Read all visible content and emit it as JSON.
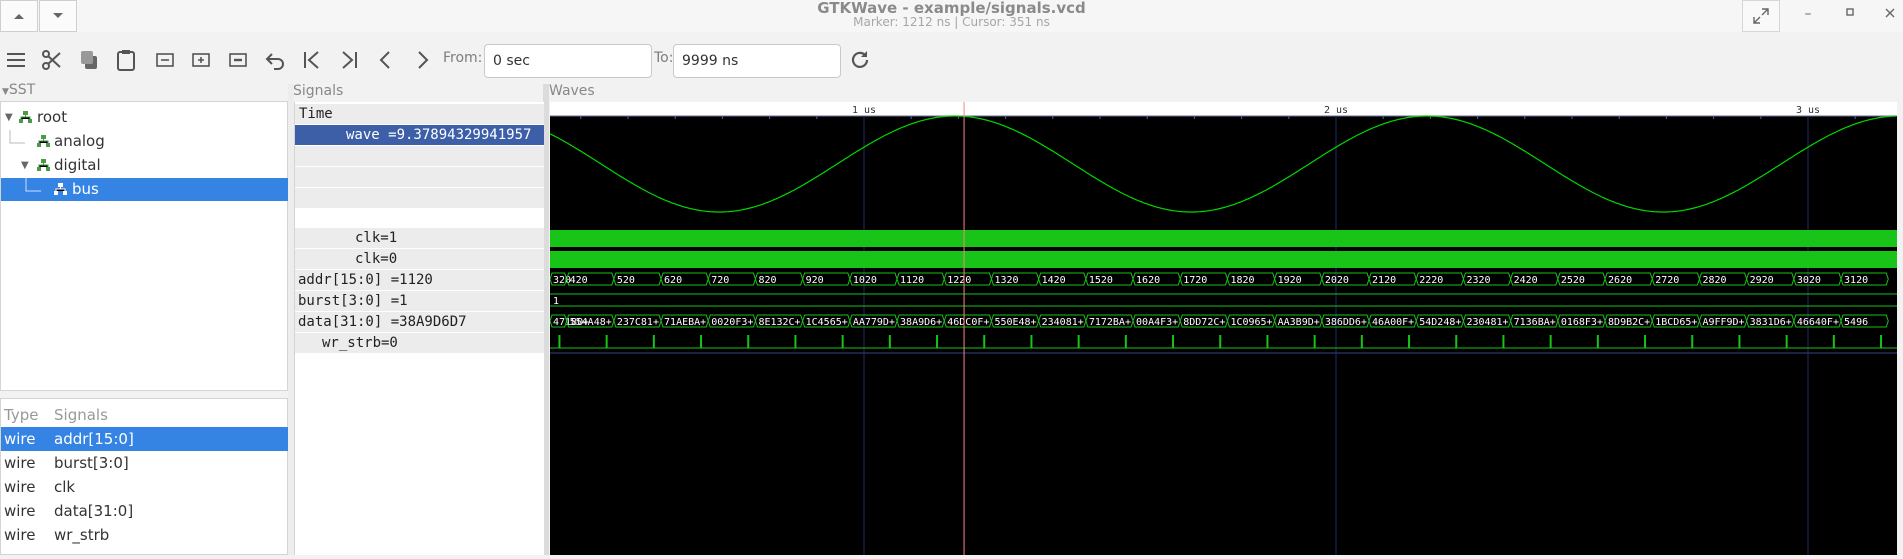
{
  "window": {
    "title": "GTKWave - example/signals.vcd",
    "subtitle": "Marker: 1212 ns  |  Cursor: 351 ns"
  },
  "toolbar": {
    "from_label": "From:",
    "from_value": "0 sec",
    "to_label": "To:",
    "to_value": "9999 ns"
  },
  "sst": {
    "title": "SST",
    "tree": [
      {
        "label": "root",
        "level": 0,
        "expanded": true
      },
      {
        "label": "analog",
        "level": 1
      },
      {
        "label": "digital",
        "level": 1,
        "expanded": true
      },
      {
        "label": "bus",
        "level": 2,
        "selected": true
      }
    ],
    "type_header": "Type",
    "signals_header": "Signals",
    "signals": [
      {
        "type": "wire",
        "name": "addr[15:0]",
        "selected": true
      },
      {
        "type": "wire",
        "name": "burst[3:0]"
      },
      {
        "type": "wire",
        "name": "clk"
      },
      {
        "type": "wire",
        "name": "data[31:0]"
      },
      {
        "type": "wire",
        "name": "wr_strb"
      }
    ]
  },
  "signals_pane": {
    "title": "Signals",
    "time_row": "Time",
    "rows": [
      {
        "text": "wave =9.37894329941957",
        "selected": true
      },
      {
        "text": ""
      },
      {
        "text": ""
      },
      {
        "text": ""
      },
      {
        "text": "clk=1"
      },
      {
        "text": "clk=0"
      },
      {
        "text": "addr[15:0] =1120"
      },
      {
        "text": "burst[3:0] =1"
      },
      {
        "text": "data[31:0] =38A9D6D7"
      },
      {
        "text": "wr_strb=0"
      }
    ]
  },
  "waves_pane": {
    "title": "Waves",
    "time_labels": [
      "1 us",
      "2 us",
      "3 us"
    ],
    "marker_time_ns": 1212,
    "addr_values": [
      "320",
      "420",
      "520",
      "620",
      "720",
      "820",
      "920",
      "1020",
      "1120",
      "1220",
      "1320",
      "1420",
      "1520",
      "1620",
      "1720",
      "1820",
      "1920",
      "2020",
      "2120",
      "2220",
      "2320",
      "2420",
      "2520",
      "2620",
      "2720",
      "2820",
      "2920",
      "3020",
      "3120"
    ],
    "burst_value": "1",
    "data_values": [
      "47180+",
      "554A48+",
      "237C81+",
      "71AEBA+",
      "0020F3+",
      "8E132C+",
      "1C4565+",
      "AA779D+",
      "38A9D6+",
      "46DC0F+",
      "550E48+",
      "234081+",
      "7172BA+",
      "00A4F3+",
      "8DD72C+",
      "1C0965+",
      "AA3B9D+",
      "386DD6+",
      "46A00F+",
      "54D248+",
      "230481+",
      "7136BA+",
      "0168F3+",
      "8D9B2C+",
      "1BCD65+",
      "A9FF9D+",
      "3831D6+",
      "46640F+",
      "5496"
    ],
    "colors": {
      "wave": "#00d800",
      "bus": "#18c418",
      "marker": "#ff8080",
      "grid": "#1d2a6a"
    }
  }
}
